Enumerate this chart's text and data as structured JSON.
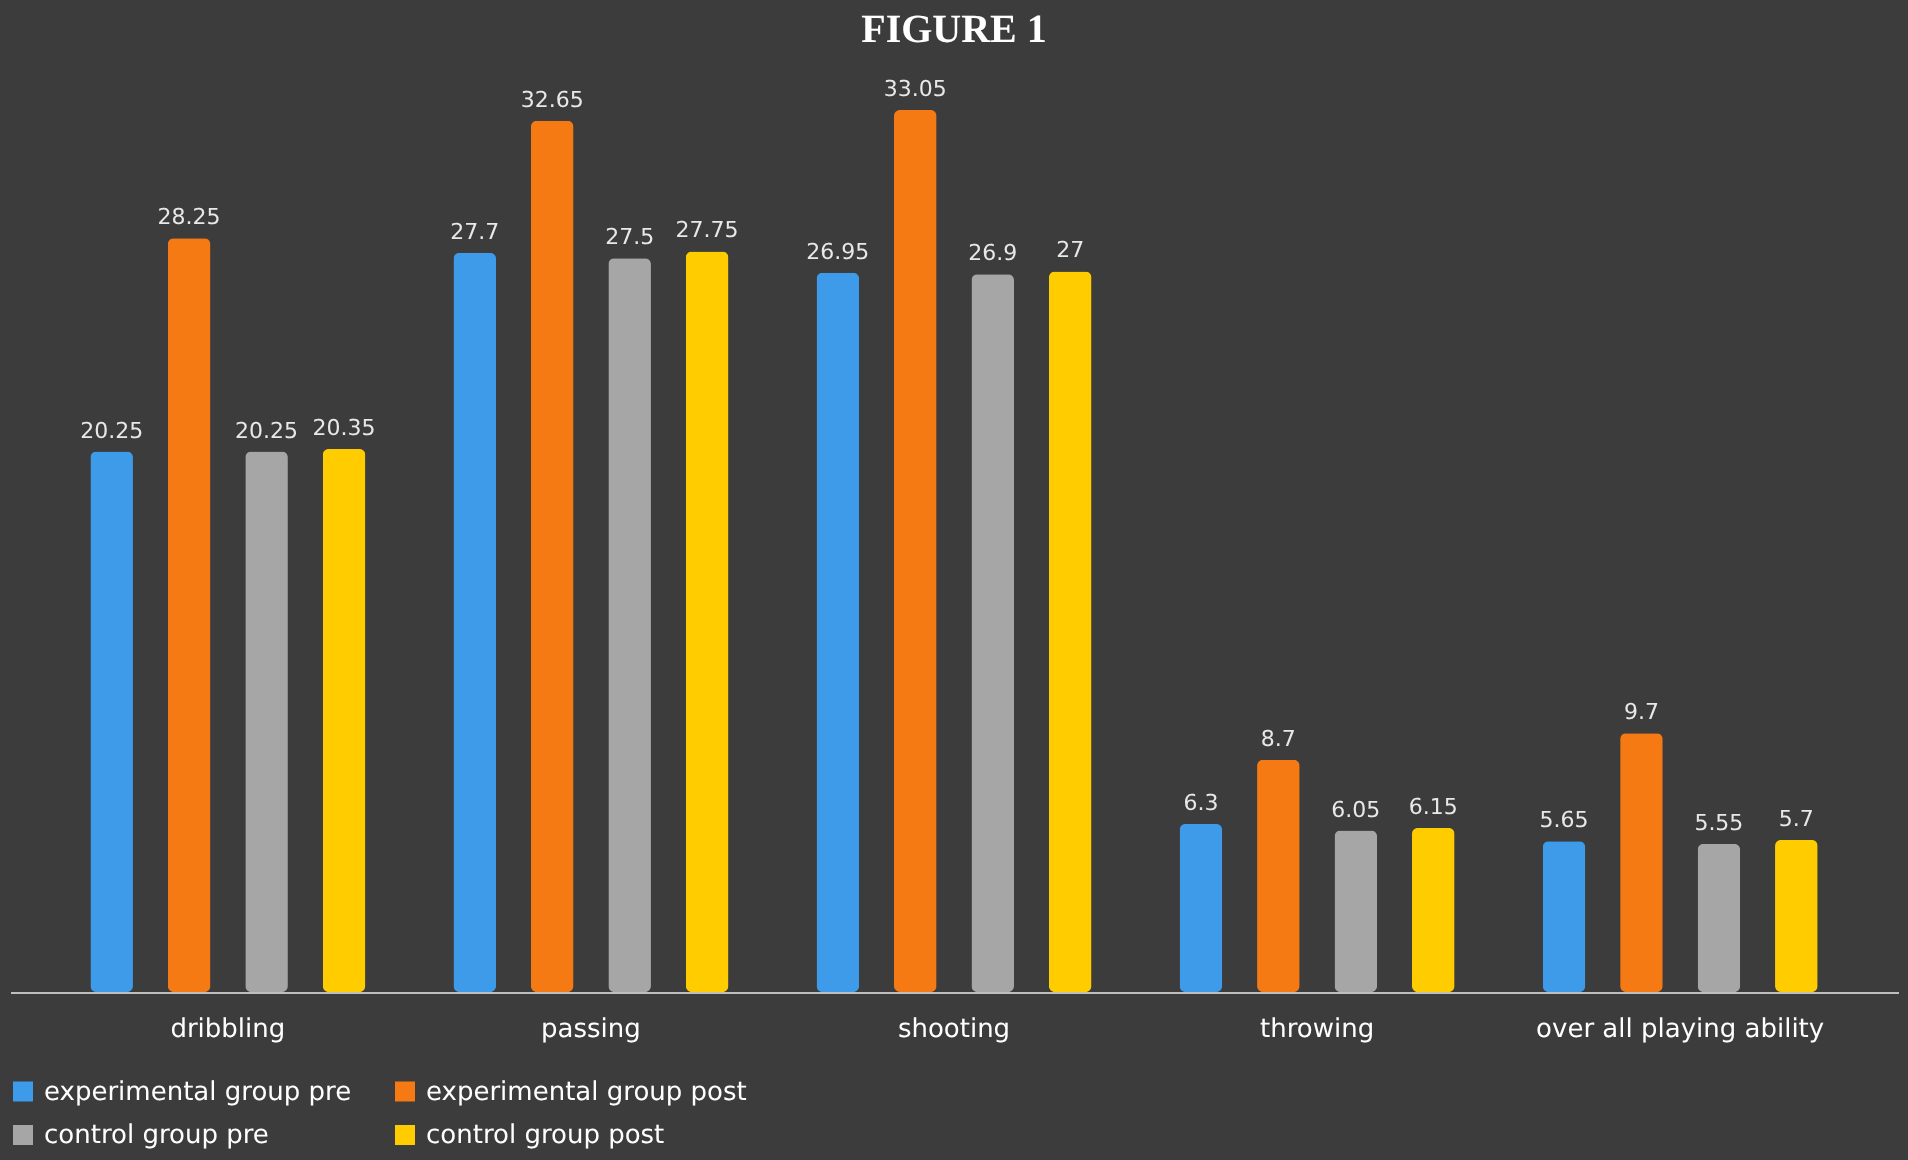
{
  "chart_data": {
    "type": "bar",
    "title": "FIGURE 1",
    "categories": [
      "dribbling",
      "passing",
      "shooting",
      "throwing",
      "over all playing ability"
    ],
    "series": [
      {
        "name": "experimental group pre",
        "color": "#3d9be9",
        "values": [
          20.25,
          27.7,
          26.95,
          6.3,
          5.65
        ]
      },
      {
        "name": "experimental group post",
        "color": "#f57a14",
        "values": [
          28.25,
          32.65,
          33.05,
          8.7,
          9.7
        ]
      },
      {
        "name": "control group pre",
        "color": "#a6a6a6",
        "values": [
          20.25,
          27.5,
          26.9,
          6.05,
          5.55
        ]
      },
      {
        "name": "control group post",
        "color": "#ffcc00",
        "values": [
          20.35,
          27.75,
          27,
          6.15,
          5.7
        ]
      }
    ],
    "data_labels": true,
    "grid": false,
    "legend": "bottom"
  }
}
